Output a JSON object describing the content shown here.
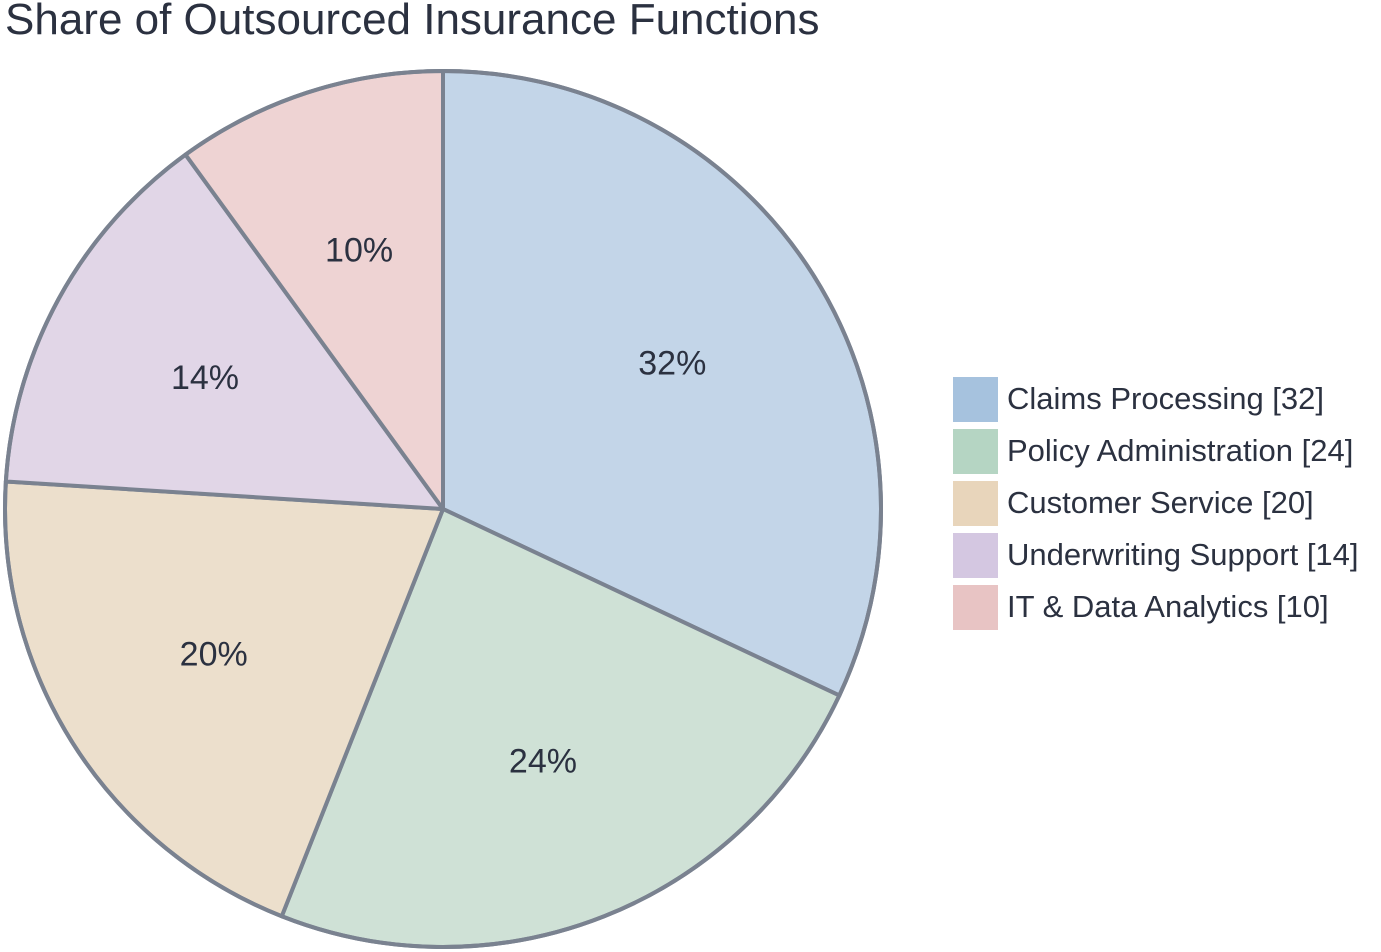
{
  "chart_data": {
    "type": "pie",
    "title": "Share of Outsourced Insurance Functions",
    "slices": [
      {
        "label": "Claims Processing",
        "value": 32,
        "percent_label": "32%",
        "legend_label": "Claims Processing [32]",
        "color": "#a6c2de",
        "fill": "#c3d5e8"
      },
      {
        "label": "Policy Administration",
        "value": 24,
        "percent_label": "24%",
        "legend_label": "Policy Administration [24]",
        "color": "#b5d5c3",
        "fill": "#cfe1d6"
      },
      {
        "label": "Customer Service",
        "value": 20,
        "percent_label": "20%",
        "legend_label": "Customer Service [20]",
        "color": "#e8d5bb",
        "fill": "#ecdfcc"
      },
      {
        "label": "Underwriting Support",
        "value": 14,
        "percent_label": "14%",
        "legend_label": "Underwriting Support [14]",
        "color": "#d4c7e1",
        "fill": "#e1d6e7"
      },
      {
        "label": "IT & Data Analytics",
        "value": 10,
        "percent_label": "10%",
        "legend_label": "IT & Data Analytics [10]",
        "color": "#e8c4c4",
        "fill": "#eed3d3"
      }
    ],
    "start_angle": "12 o'clock",
    "direction": "clockwise",
    "legend_position": "right",
    "slice_border_color": "#7a8290"
  }
}
